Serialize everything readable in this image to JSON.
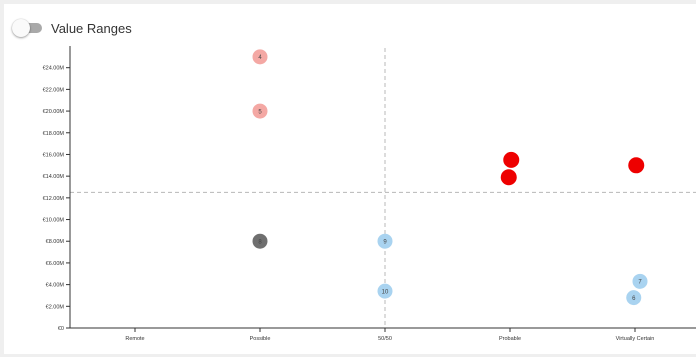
{
  "toggle": {
    "label": "Value Ranges",
    "checked": false
  },
  "chart_data": {
    "type": "scatter",
    "title": "",
    "xlabel": "",
    "ylabel": "",
    "categories": [
      "Remote",
      "Possible",
      "50/50",
      "Probable",
      "Virtually Certain"
    ],
    "ylim": [
      0,
      26
    ],
    "y_ticks": [
      {
        "value": 0,
        "label": "€0"
      },
      {
        "value": 2,
        "label": "€2.00M"
      },
      {
        "value": 4,
        "label": "€4.00M"
      },
      {
        "value": 6,
        "label": "€6.00M"
      },
      {
        "value": 8,
        "label": "€8.00M"
      },
      {
        "value": 10,
        "label": "€10.00M"
      },
      {
        "value": 12,
        "label": "€12.00M"
      },
      {
        "value": 14,
        "label": "€14.00M"
      },
      {
        "value": 16,
        "label": "€16.00M"
      },
      {
        "value": 18,
        "label": "€18.00M"
      },
      {
        "value": 20,
        "label": "€20.00M"
      },
      {
        "value": 22,
        "label": "€22.00M"
      },
      {
        "value": 24,
        "label": "€24.00M"
      }
    ],
    "reference_lines": {
      "vertical_category": "50/50",
      "horizontal_value": 12.5
    },
    "colors": {
      "pink": "#f4a8a4",
      "red": "#ee0000",
      "grey": "#6f6f6f",
      "blue": "#a9d3f0",
      "axis": "#333333",
      "reference": "#b8b8b8"
    },
    "points": [
      {
        "category": "Possible",
        "offset": 0,
        "value": 25,
        "label": "4",
        "color": "pink",
        "size": "small"
      },
      {
        "category": "Possible",
        "offset": 0,
        "value": 20,
        "label": "5",
        "color": "pink",
        "size": "small"
      },
      {
        "category": "Possible",
        "offset": 0,
        "value": 8,
        "label": "8",
        "color": "grey",
        "size": "small"
      },
      {
        "category": "50/50",
        "offset": 0,
        "value": 8,
        "label": "9",
        "color": "blue",
        "size": "small"
      },
      {
        "category": "50/50",
        "offset": 0,
        "value": 3.4,
        "label": "10",
        "color": "blue",
        "size": "small"
      },
      {
        "category": "Probable",
        "offset": 0.01,
        "value": 15.5,
        "label": "",
        "color": "red",
        "size": "large"
      },
      {
        "category": "Probable",
        "offset": -0.01,
        "value": 13.9,
        "label": "",
        "color": "red",
        "size": "large"
      },
      {
        "category": "Virtually Certain",
        "offset": 0.01,
        "value": 15,
        "label": "",
        "color": "red",
        "size": "large"
      },
      {
        "category": "Virtually Certain",
        "offset": 0.04,
        "value": 4.3,
        "label": "7",
        "color": "blue",
        "size": "small"
      },
      {
        "category": "Virtually Certain",
        "offset": -0.01,
        "value": 2.8,
        "label": "6",
        "color": "blue",
        "size": "small"
      }
    ]
  }
}
